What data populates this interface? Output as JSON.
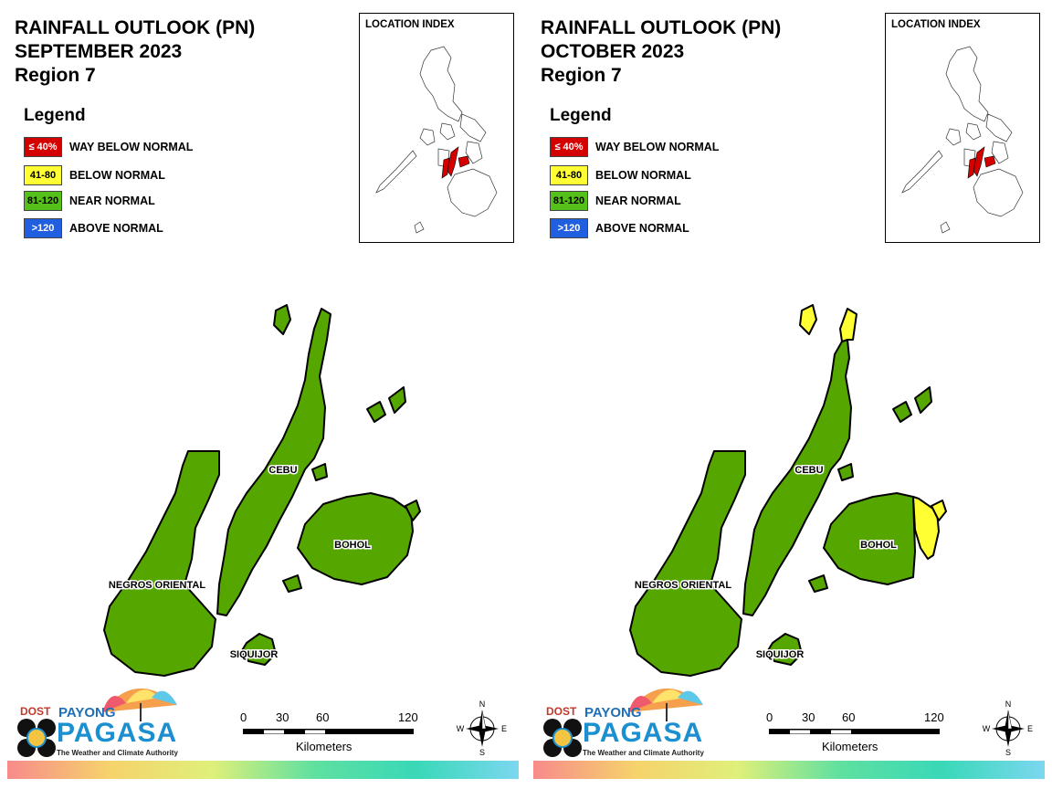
{
  "panels": [
    {
      "title_lines": [
        "RAINFALL OUTLOOK (PN)",
        "SEPTEMBER 2023",
        "Region 7"
      ],
      "provinces": {
        "cebu": {
          "label": "CEBU",
          "category": "near_normal"
        },
        "bohol": {
          "label": "BOHOL",
          "category": "near_normal"
        },
        "negros_oriental": {
          "label": "NEGROS ORIENTAL",
          "category": "near_normal"
        },
        "siquijor": {
          "label": "SIQUIJOR",
          "category": "near_normal"
        }
      }
    },
    {
      "title_lines": [
        "RAINFALL OUTLOOK (PN)",
        "OCTOBER 2023",
        "Region 7"
      ],
      "provinces": {
        "cebu": {
          "label": "CEBU",
          "category": "near_normal"
        },
        "bohol": {
          "label": "BOHOL",
          "category": "near_normal"
        },
        "negros_oriental": {
          "label": "NEGROS ORIENTAL",
          "category": "near_normal"
        },
        "siquijor": {
          "label": "SIQUIJOR",
          "category": "near_normal"
        }
      }
    }
  ],
  "legend": {
    "title": "Legend",
    "items": [
      {
        "range": "≤ 40%",
        "label": "WAY BELOW NORMAL",
        "color": "#d40000",
        "text_color": "#ffffff"
      },
      {
        "range": "41-80",
        "label": "BELOW NORMAL",
        "color": "#ffff33",
        "text_color": "#000000"
      },
      {
        "range": "81-120",
        "label": "NEAR NORMAL",
        "color": "#55c01a",
        "text_color": "#000000"
      },
      {
        "range": ">120",
        "label": "ABOVE NORMAL",
        "color": "#1f5fe0",
        "text_color": "#ffffff"
      }
    ]
  },
  "location_index": {
    "title": "LOCATION INDEX",
    "highlight_color": "#d40000"
  },
  "scale": {
    "ticks": [
      "0",
      "30",
      "60",
      "120"
    ],
    "unit": "Kilometers"
  },
  "compass": {
    "n": "N",
    "e": "E",
    "s": "S",
    "w": "W"
  },
  "logo": {
    "agency": "DOST",
    "payong": "PAYONG",
    "pagasa": "PAGASA",
    "tagline": "The Weather and Climate Authority"
  },
  "colors": {
    "land_fill": "#55a700",
    "below_normal_fill": "#ffff33",
    "outline": "#000000"
  }
}
